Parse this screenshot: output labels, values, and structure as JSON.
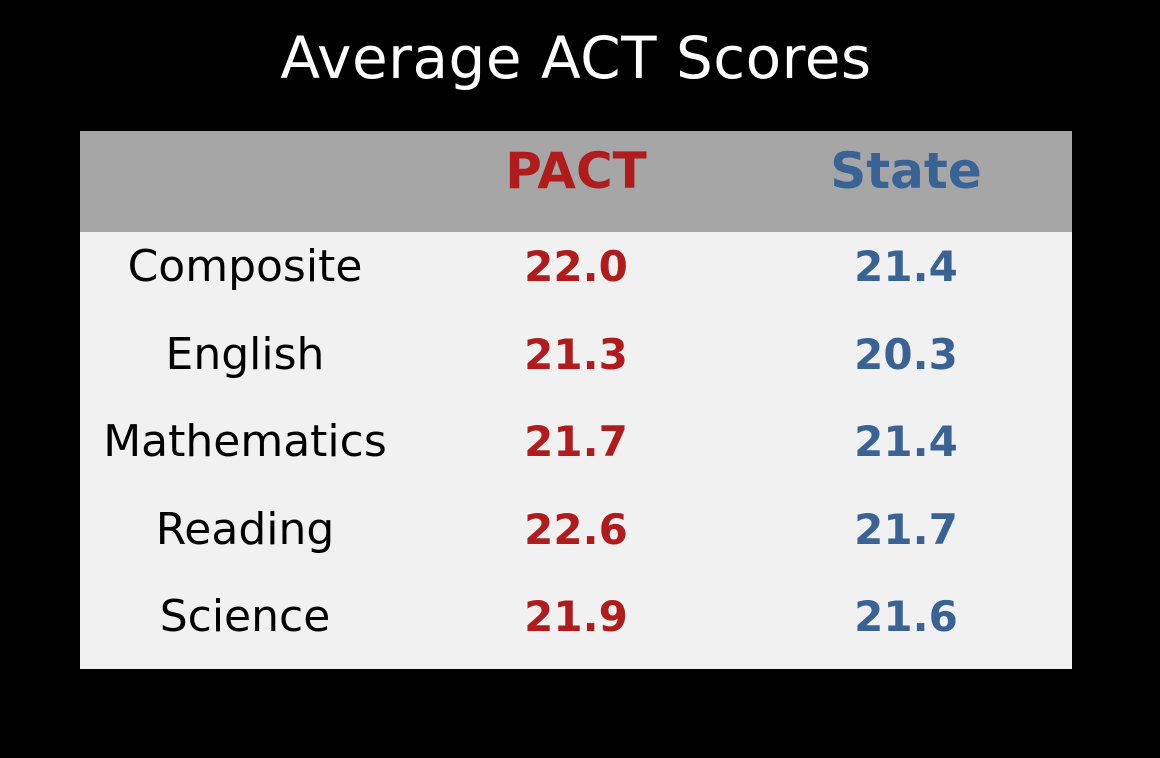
{
  "colors": {
    "background": "#000000",
    "title_text": "#ffffff",
    "header_band": "#a6a6a6",
    "table_body": "#f1f1f1",
    "pact": "#b01c1c",
    "state": "#3a6395",
    "label_text": "#000000"
  },
  "chart_data": {
    "type": "table",
    "title": "Average ACT Scores",
    "columns": [
      "",
      "PACT",
      "State"
    ],
    "rows": [
      {
        "subject": "Composite",
        "pact": "22.0",
        "state": "21.4"
      },
      {
        "subject": "English",
        "pact": "21.3",
        "state": "20.3"
      },
      {
        "subject": "Mathematics",
        "pact": "21.7",
        "state": "21.4"
      },
      {
        "subject": "Reading",
        "pact": "22.6",
        "state": "21.7"
      },
      {
        "subject": "Science",
        "pact": "21.9",
        "state": "21.6"
      }
    ]
  }
}
